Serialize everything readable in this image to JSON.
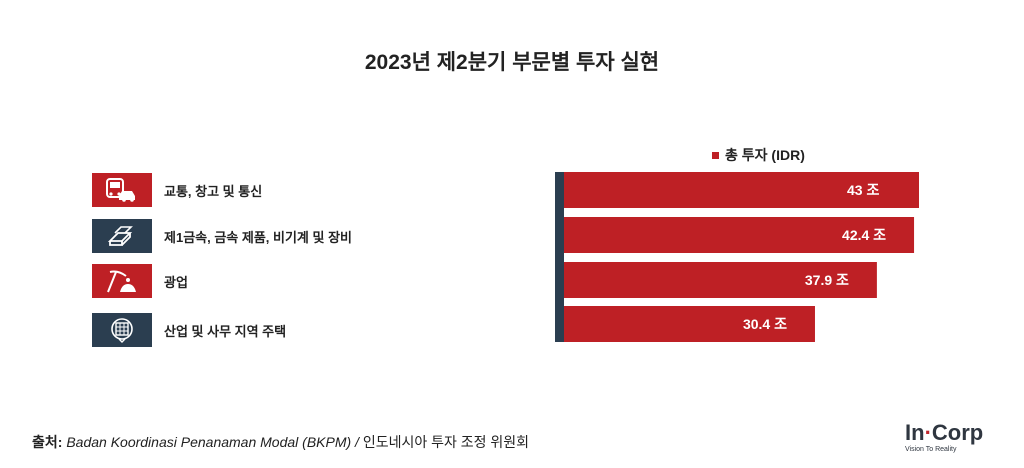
{
  "title": "2023년 제2분기 부문별 투자 실현",
  "legend": {
    "label": "총 투자 (IDR)"
  },
  "colors": {
    "bar": "#be2025",
    "axis": "#2b3e50",
    "icon_red": "#be2025",
    "icon_navy": "#2b3e50"
  },
  "categories": [
    {
      "label": "교통, 창고 및 통신",
      "icon": "bus-car-icon",
      "icon_color": "#be2025"
    },
    {
      "label": "제1금속, 금속 제품, 비기계 및 장비",
      "icon": "metal-bars-icon",
      "icon_color": "#2b3e50"
    },
    {
      "label": "광업",
      "icon": "mining-pickaxe-icon",
      "icon_color": "#be2025"
    },
    {
      "label": "산업 및 사무 지역 주택",
      "icon": "office-building-icon",
      "icon_color": "#2b3e50"
    }
  ],
  "chart_data": {
    "type": "bar",
    "orientation": "horizontal",
    "title": "2023년 제2분기 부문별 투자 실현",
    "categories": [
      "교통, 창고 및 통신",
      "제1금속, 금속 제품, 비기계 및 장비",
      "광업",
      "산업 및 사무 지역 주택"
    ],
    "series": [
      {
        "name": "총 투자 (IDR)",
        "values": [
          43,
          42.4,
          37.9,
          30.4
        ]
      }
    ],
    "value_labels": [
      "43 조",
      "42.4 조",
      "37.9 조",
      "30.4 조"
    ],
    "xlim": [
      0,
      43
    ],
    "grid": false,
    "legend_position": "top"
  },
  "source": {
    "label": "출처:",
    "italic_text": "Badan Koordinasi Penanaman Modal (BKPM) /",
    "text": "인도네시아 투자 조정 위원회"
  },
  "logo": {
    "main_left": "In",
    "main_dot": "·",
    "main_right": "Corp",
    "tagline": "Vision To Reality"
  }
}
